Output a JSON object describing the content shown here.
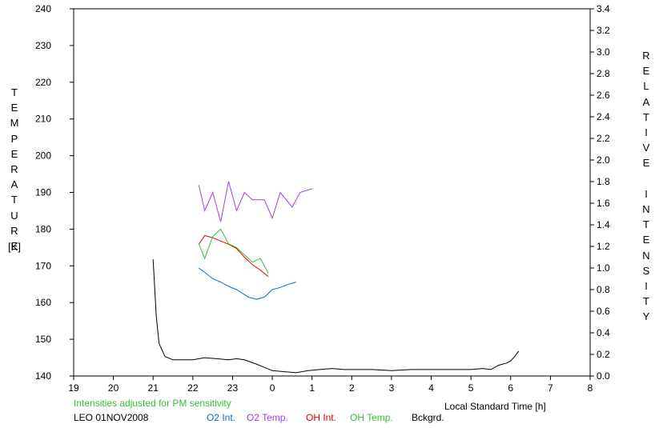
{
  "chart_data": {
    "type": "line",
    "ylabel_left": "TEMPERATURE",
    "ylabel_left_unit": "[K]",
    "ylabel_right": "RELATIVE INTENSITY",
    "xlabel": "Local Standard Time [h]",
    "note": "Intensities adjusted for PM sensitivity",
    "station": "LEO 01NOV2008",
    "x_ticks": [
      "19",
      "20",
      "21",
      "22",
      "23",
      "0",
      "1",
      "2",
      "3",
      "4",
      "5",
      "6",
      "7",
      "8"
    ],
    "y_left_ticks": [
      "140",
      "150",
      "160",
      "170",
      "180",
      "190",
      "200",
      "210",
      "220",
      "230",
      "240"
    ],
    "y_right_ticks": [
      "0.0",
      "0.2",
      "0.4",
      "0.6",
      "0.8",
      "1.0",
      "1.2",
      "1.4",
      "1.6",
      "1.8",
      "2.0",
      "2.2",
      "2.4",
      "2.6",
      "2.8",
      "3.0",
      "3.2",
      "3.4"
    ],
    "ylim_left": [
      140,
      240
    ],
    "ylim_right": [
      0,
      3.4
    ],
    "xlim_hours_since_19": [
      0,
      13
    ],
    "legend_placement": "bottom",
    "series": [
      {
        "name": "O2 Int.",
        "axis": "right",
        "color": "#0070d0",
        "points": [
          [
            22.15,
            1.0
          ],
          [
            22.3,
            0.96
          ],
          [
            22.5,
            0.9
          ],
          [
            22.7,
            0.87
          ],
          [
            22.9,
            0.83
          ],
          [
            23.1,
            0.8
          ],
          [
            23.4,
            0.73
          ],
          [
            23.6,
            0.71
          ],
          [
            23.8,
            0.73
          ],
          [
            24.0,
            0.8
          ],
          [
            24.2,
            0.82
          ],
          [
            24.4,
            0.85
          ],
          [
            24.6,
            0.87
          ]
        ]
      },
      {
        "name": "O2 Temp.",
        "axis": "left",
        "color": "#a040e0",
        "points": [
          [
            22.15,
            192
          ],
          [
            22.3,
            185
          ],
          [
            22.5,
            190
          ],
          [
            22.7,
            182
          ],
          [
            22.9,
            193
          ],
          [
            23.1,
            185
          ],
          [
            23.3,
            190
          ],
          [
            23.5,
            188
          ],
          [
            23.8,
            188
          ],
          [
            24.0,
            183
          ],
          [
            24.2,
            190
          ],
          [
            24.5,
            186
          ],
          [
            24.7,
            190
          ],
          [
            25.0,
            191
          ]
        ]
      },
      {
        "name": "OH Int.",
        "axis": "right",
        "color": "#e00000",
        "points": [
          [
            22.15,
            1.22
          ],
          [
            22.3,
            1.3
          ],
          [
            22.5,
            1.28
          ],
          [
            22.7,
            1.25
          ],
          [
            22.9,
            1.22
          ],
          [
            23.1,
            1.18
          ],
          [
            23.3,
            1.1
          ],
          [
            23.5,
            1.03
          ],
          [
            23.7,
            0.98
          ],
          [
            23.9,
            0.92
          ]
        ]
      },
      {
        "name": "OH Temp.",
        "axis": "left",
        "color": "#30c030",
        "points": [
          [
            22.15,
            176
          ],
          [
            22.3,
            172
          ],
          [
            22.5,
            178
          ],
          [
            22.7,
            180
          ],
          [
            22.9,
            176
          ],
          [
            23.1,
            175
          ],
          [
            23.3,
            173
          ],
          [
            23.5,
            171
          ],
          [
            23.7,
            172
          ],
          [
            23.9,
            168
          ]
        ]
      },
      {
        "name": "Bckgrd.",
        "axis": "right",
        "color": "#000000",
        "points": [
          [
            21.0,
            1.08
          ],
          [
            21.08,
            0.55
          ],
          [
            21.15,
            0.3
          ],
          [
            21.3,
            0.18
          ],
          [
            21.5,
            0.15
          ],
          [
            22.0,
            0.15
          ],
          [
            22.3,
            0.17
          ],
          [
            22.6,
            0.16
          ],
          [
            22.9,
            0.15
          ],
          [
            23.1,
            0.16
          ],
          [
            23.3,
            0.15
          ],
          [
            23.6,
            0.11
          ],
          [
            23.8,
            0.08
          ],
          [
            24.0,
            0.05
          ],
          [
            24.3,
            0.04
          ],
          [
            24.6,
            0.03
          ],
          [
            24.9,
            0.05
          ],
          [
            25.2,
            0.06
          ],
          [
            25.5,
            0.07
          ],
          [
            25.8,
            0.06
          ],
          [
            26.0,
            0.06
          ],
          [
            26.5,
            0.06
          ],
          [
            27.0,
            0.05
          ],
          [
            27.5,
            0.06
          ],
          [
            28.0,
            0.06
          ],
          [
            28.5,
            0.06
          ],
          [
            29.0,
            0.06
          ],
          [
            29.3,
            0.07
          ],
          [
            29.5,
            0.06
          ],
          [
            29.7,
            0.1
          ],
          [
            29.9,
            0.12
          ],
          [
            30.0,
            0.14
          ],
          [
            30.1,
            0.18
          ],
          [
            30.2,
            0.23
          ]
        ]
      }
    ]
  }
}
